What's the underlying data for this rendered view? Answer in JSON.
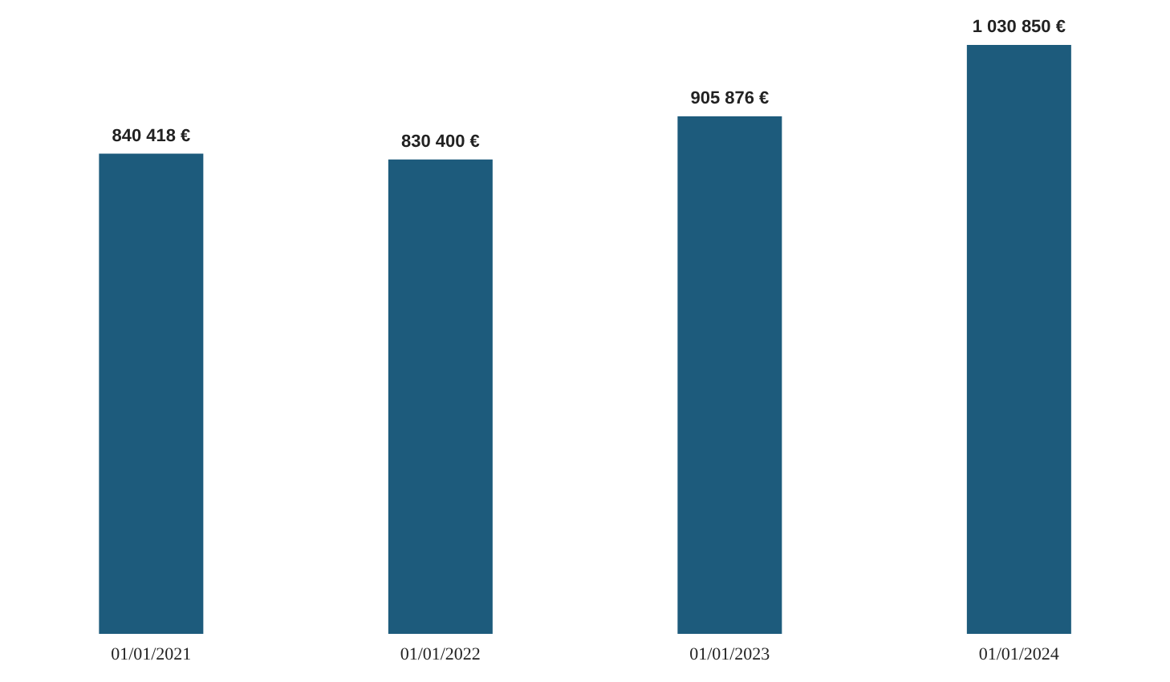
{
  "chart_data": {
    "type": "bar",
    "categories": [
      "01/01/2021",
      "01/01/2022",
      "01/01/2023",
      "01/01/2024"
    ],
    "values": [
      840418,
      830400,
      905876,
      1030850
    ],
    "value_labels": [
      "840 418 €",
      "830 400 €",
      "905 876 €",
      "1 030 850 €"
    ],
    "color": "#1d5b7c"
  }
}
